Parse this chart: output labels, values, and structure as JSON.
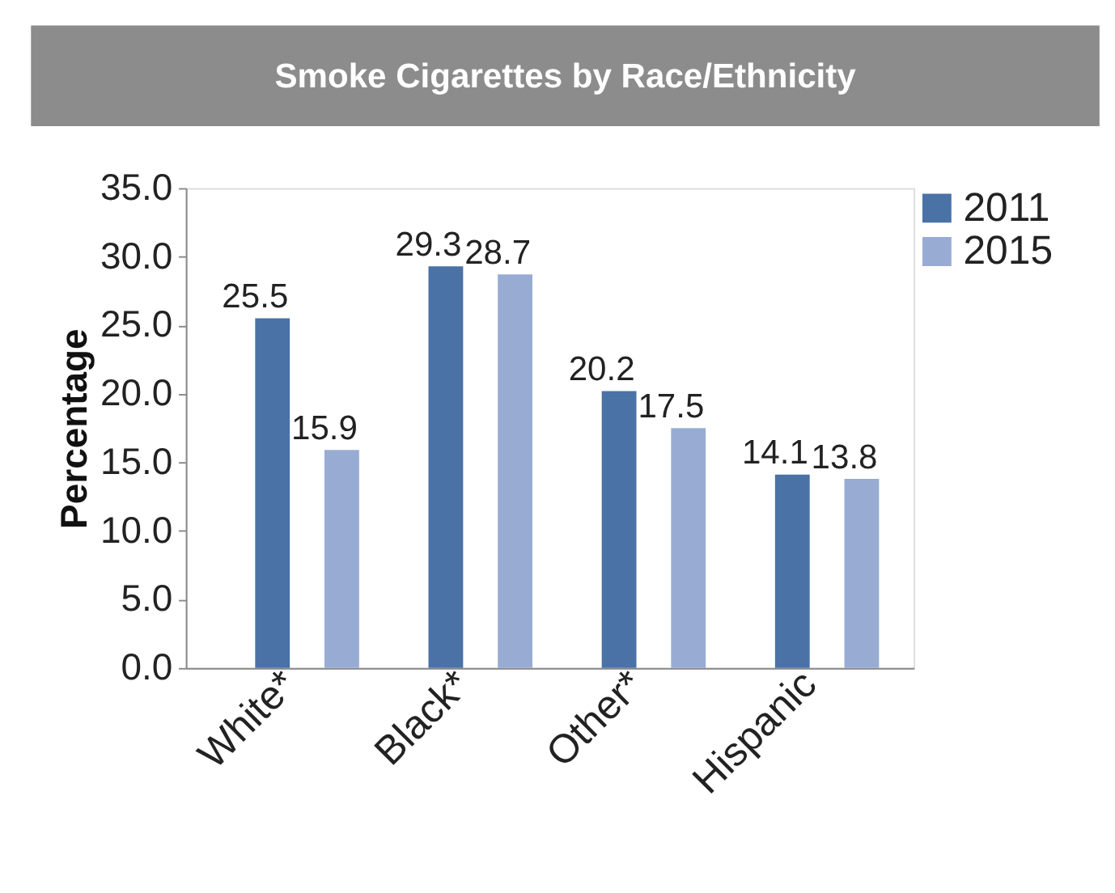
{
  "chart_data": {
    "type": "bar",
    "title": "Smoke Cigarettes by Race/Ethnicity",
    "ylabel": "Percentage",
    "categories": [
      "White*",
      "Black*",
      "Other*",
      "Hispanic"
    ],
    "series": [
      {
        "name": "2011",
        "color": "#4a72a6",
        "values": [
          25.5,
          29.3,
          20.2,
          14.1
        ]
      },
      {
        "name": "2015",
        "color": "#98acd3",
        "values": [
          15.9,
          28.7,
          17.5,
          13.8
        ]
      }
    ],
    "ylim": [
      0,
      35
    ],
    "yticks": [
      {
        "value": 0,
        "label": "0.0"
      },
      {
        "value": 5,
        "label": "5.0"
      },
      {
        "value": 10,
        "label": "10.0"
      },
      {
        "value": 15,
        "label": "15.0"
      },
      {
        "value": 20,
        "label": "20.0"
      },
      {
        "value": 25,
        "label": "25.0"
      },
      {
        "value": 30,
        "label": "30.0"
      },
      {
        "value": 35,
        "label": "35.0"
      }
    ],
    "data_labels": true,
    "grid": false,
    "legend": "right"
  }
}
